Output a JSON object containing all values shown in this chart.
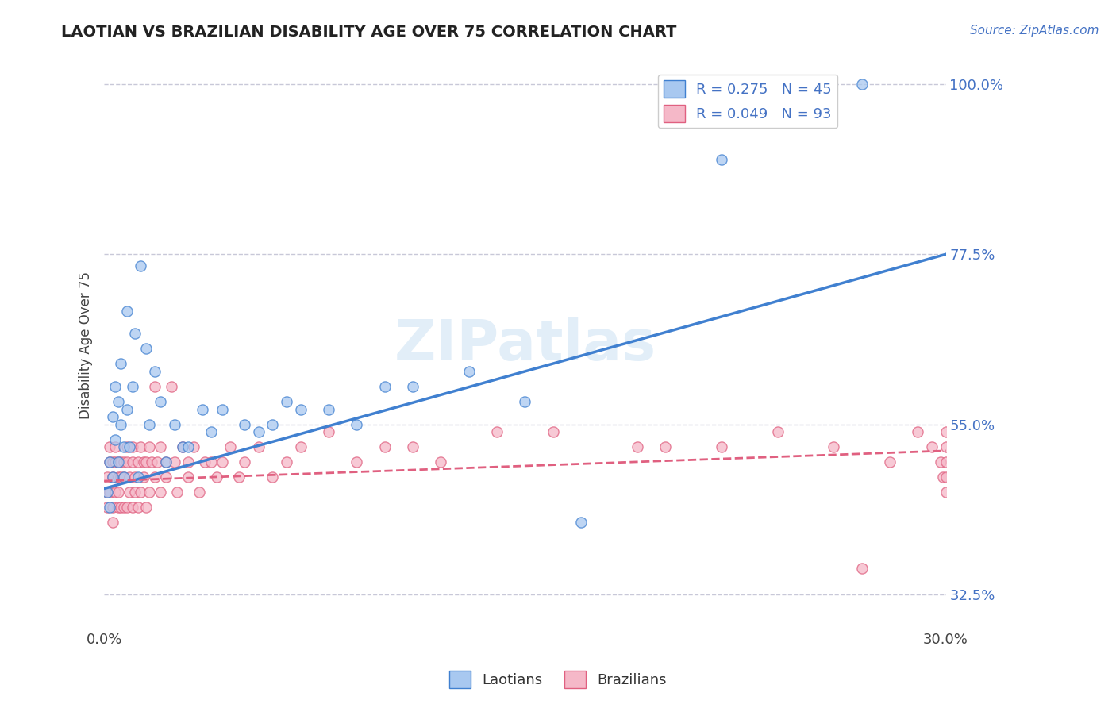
{
  "title": "LAOTIAN VS BRAZILIAN DISABILITY AGE OVER 75 CORRELATION CHART",
  "source_text": "Source: ZipAtlas.com",
  "ylabel": "Disability Age Over 75",
  "xlim": [
    0.0,
    0.3
  ],
  "ylim": [
    0.28,
    1.03
  ],
  "yticks": [
    0.325,
    0.55,
    0.775,
    1.0
  ],
  "ytick_labels": [
    "32.5%",
    "55.0%",
    "77.5%",
    "100.0%"
  ],
  "xticks": [
    0.0,
    0.3
  ],
  "xtick_labels": [
    "0.0%",
    "30.0%"
  ],
  "legend_r1": "R = 0.275   N = 45",
  "legend_r2": "R = 0.049   N = 93",
  "laotian_color": "#a8c8f0",
  "brazilian_color": "#f5b8c8",
  "trendline_laotian_color": "#4080d0",
  "trendline_brazilian_color": "#e06080",
  "background_color": "#ffffff",
  "grid_color": "#c8c8d8",
  "watermark": "ZIPatlas",
  "lao_trend_x0": 0.0,
  "lao_trend_y0": 0.465,
  "lao_trend_x1": 0.3,
  "lao_trend_y1": 0.775,
  "bra_trend_x0": 0.0,
  "bra_trend_y0": 0.475,
  "bra_trend_x1": 0.3,
  "bra_trend_y1": 0.515,
  "laotian_x": [
    0.001,
    0.002,
    0.002,
    0.003,
    0.003,
    0.004,
    0.004,
    0.005,
    0.005,
    0.006,
    0.006,
    0.007,
    0.007,
    0.008,
    0.008,
    0.009,
    0.01,
    0.011,
    0.012,
    0.013,
    0.015,
    0.016,
    0.018,
    0.02,
    0.022,
    0.025,
    0.028,
    0.03,
    0.035,
    0.038,
    0.042,
    0.05,
    0.055,
    0.06,
    0.065,
    0.07,
    0.08,
    0.09,
    0.1,
    0.11,
    0.13,
    0.15,
    0.17,
    0.22,
    0.27
  ],
  "laotian_y": [
    0.46,
    0.5,
    0.44,
    0.56,
    0.48,
    0.53,
    0.6,
    0.5,
    0.58,
    0.55,
    0.63,
    0.52,
    0.48,
    0.57,
    0.7,
    0.52,
    0.6,
    0.67,
    0.48,
    0.76,
    0.65,
    0.55,
    0.62,
    0.58,
    0.5,
    0.55,
    0.52,
    0.52,
    0.57,
    0.54,
    0.57,
    0.55,
    0.54,
    0.55,
    0.58,
    0.57,
    0.57,
    0.55,
    0.6,
    0.6,
    0.62,
    0.58,
    0.42,
    0.9,
    1.0
  ],
  "brazilian_x": [
    0.001,
    0.001,
    0.001,
    0.002,
    0.002,
    0.002,
    0.003,
    0.003,
    0.003,
    0.003,
    0.004,
    0.004,
    0.004,
    0.005,
    0.005,
    0.005,
    0.005,
    0.006,
    0.006,
    0.006,
    0.007,
    0.007,
    0.007,
    0.008,
    0.008,
    0.008,
    0.009,
    0.009,
    0.01,
    0.01,
    0.01,
    0.011,
    0.011,
    0.012,
    0.012,
    0.013,
    0.013,
    0.014,
    0.014,
    0.015,
    0.015,
    0.016,
    0.016,
    0.017,
    0.018,
    0.018,
    0.019,
    0.02,
    0.02,
    0.022,
    0.022,
    0.024,
    0.025,
    0.026,
    0.028,
    0.03,
    0.03,
    0.032,
    0.034,
    0.036,
    0.038,
    0.04,
    0.042,
    0.045,
    0.048,
    0.05,
    0.055,
    0.06,
    0.065,
    0.07,
    0.08,
    0.09,
    0.1,
    0.11,
    0.12,
    0.14,
    0.16,
    0.19,
    0.2,
    0.22,
    0.24,
    0.26,
    0.27,
    0.28,
    0.29,
    0.295,
    0.298,
    0.299,
    0.3,
    0.3,
    0.3,
    0.3,
    0.3
  ],
  "brazilian_y": [
    0.46,
    0.48,
    0.44,
    0.5,
    0.46,
    0.52,
    0.44,
    0.48,
    0.5,
    0.42,
    0.46,
    0.5,
    0.52,
    0.44,
    0.48,
    0.5,
    0.46,
    0.44,
    0.5,
    0.48,
    0.44,
    0.5,
    0.48,
    0.44,
    0.5,
    0.52,
    0.46,
    0.48,
    0.44,
    0.5,
    0.52,
    0.46,
    0.48,
    0.5,
    0.44,
    0.46,
    0.52,
    0.5,
    0.48,
    0.44,
    0.5,
    0.46,
    0.52,
    0.5,
    0.48,
    0.6,
    0.5,
    0.46,
    0.52,
    0.5,
    0.48,
    0.6,
    0.5,
    0.46,
    0.52,
    0.5,
    0.48,
    0.52,
    0.46,
    0.5,
    0.5,
    0.48,
    0.5,
    0.52,
    0.48,
    0.5,
    0.52,
    0.48,
    0.5,
    0.52,
    0.54,
    0.5,
    0.52,
    0.52,
    0.5,
    0.54,
    0.54,
    0.52,
    0.52,
    0.52,
    0.54,
    0.52,
    0.36,
    0.5,
    0.54,
    0.52,
    0.5,
    0.48,
    0.54,
    0.5,
    0.48,
    0.52,
    0.46
  ]
}
